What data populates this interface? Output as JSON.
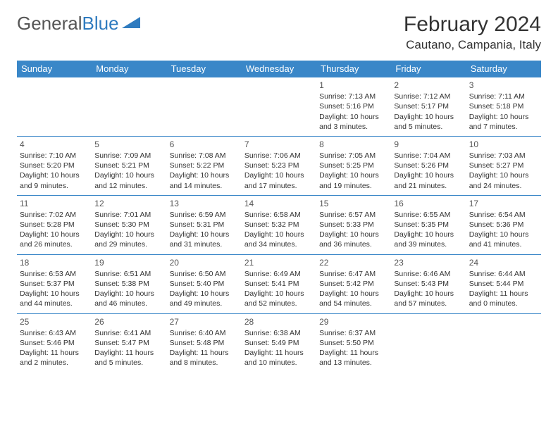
{
  "logo": {
    "text1": "General",
    "text2": "Blue"
  },
  "title": "February 2024",
  "location": "Cautano, Campania, Italy",
  "colors": {
    "header_bg": "#3a87c8",
    "header_fg": "#ffffff",
    "row_border": "#3a87c8",
    "text": "#333333",
    "logo_blue": "#2f7bbf"
  },
  "weekdays": [
    "Sunday",
    "Monday",
    "Tuesday",
    "Wednesday",
    "Thursday",
    "Friday",
    "Saturday"
  ],
  "weeks": [
    [
      null,
      null,
      null,
      null,
      {
        "n": "1",
        "sr": "7:13 AM",
        "ss": "5:16 PM",
        "dl": "10 hours and 3 minutes."
      },
      {
        "n": "2",
        "sr": "7:12 AM",
        "ss": "5:17 PM",
        "dl": "10 hours and 5 minutes."
      },
      {
        "n": "3",
        "sr": "7:11 AM",
        "ss": "5:18 PM",
        "dl": "10 hours and 7 minutes."
      }
    ],
    [
      {
        "n": "4",
        "sr": "7:10 AM",
        "ss": "5:20 PM",
        "dl": "10 hours and 9 minutes."
      },
      {
        "n": "5",
        "sr": "7:09 AM",
        "ss": "5:21 PM",
        "dl": "10 hours and 12 minutes."
      },
      {
        "n": "6",
        "sr": "7:08 AM",
        "ss": "5:22 PM",
        "dl": "10 hours and 14 minutes."
      },
      {
        "n": "7",
        "sr": "7:06 AM",
        "ss": "5:23 PM",
        "dl": "10 hours and 17 minutes."
      },
      {
        "n": "8",
        "sr": "7:05 AM",
        "ss": "5:25 PM",
        "dl": "10 hours and 19 minutes."
      },
      {
        "n": "9",
        "sr": "7:04 AM",
        "ss": "5:26 PM",
        "dl": "10 hours and 21 minutes."
      },
      {
        "n": "10",
        "sr": "7:03 AM",
        "ss": "5:27 PM",
        "dl": "10 hours and 24 minutes."
      }
    ],
    [
      {
        "n": "11",
        "sr": "7:02 AM",
        "ss": "5:28 PM",
        "dl": "10 hours and 26 minutes."
      },
      {
        "n": "12",
        "sr": "7:01 AM",
        "ss": "5:30 PM",
        "dl": "10 hours and 29 minutes."
      },
      {
        "n": "13",
        "sr": "6:59 AM",
        "ss": "5:31 PM",
        "dl": "10 hours and 31 minutes."
      },
      {
        "n": "14",
        "sr": "6:58 AM",
        "ss": "5:32 PM",
        "dl": "10 hours and 34 minutes."
      },
      {
        "n": "15",
        "sr": "6:57 AM",
        "ss": "5:33 PM",
        "dl": "10 hours and 36 minutes."
      },
      {
        "n": "16",
        "sr": "6:55 AM",
        "ss": "5:35 PM",
        "dl": "10 hours and 39 minutes."
      },
      {
        "n": "17",
        "sr": "6:54 AM",
        "ss": "5:36 PM",
        "dl": "10 hours and 41 minutes."
      }
    ],
    [
      {
        "n": "18",
        "sr": "6:53 AM",
        "ss": "5:37 PM",
        "dl": "10 hours and 44 minutes."
      },
      {
        "n": "19",
        "sr": "6:51 AM",
        "ss": "5:38 PM",
        "dl": "10 hours and 46 minutes."
      },
      {
        "n": "20",
        "sr": "6:50 AM",
        "ss": "5:40 PM",
        "dl": "10 hours and 49 minutes."
      },
      {
        "n": "21",
        "sr": "6:49 AM",
        "ss": "5:41 PM",
        "dl": "10 hours and 52 minutes."
      },
      {
        "n": "22",
        "sr": "6:47 AM",
        "ss": "5:42 PM",
        "dl": "10 hours and 54 minutes."
      },
      {
        "n": "23",
        "sr": "6:46 AM",
        "ss": "5:43 PM",
        "dl": "10 hours and 57 minutes."
      },
      {
        "n": "24",
        "sr": "6:44 AM",
        "ss": "5:44 PM",
        "dl": "11 hours and 0 minutes."
      }
    ],
    [
      {
        "n": "25",
        "sr": "6:43 AM",
        "ss": "5:46 PM",
        "dl": "11 hours and 2 minutes."
      },
      {
        "n": "26",
        "sr": "6:41 AM",
        "ss": "5:47 PM",
        "dl": "11 hours and 5 minutes."
      },
      {
        "n": "27",
        "sr": "6:40 AM",
        "ss": "5:48 PM",
        "dl": "11 hours and 8 minutes."
      },
      {
        "n": "28",
        "sr": "6:38 AM",
        "ss": "5:49 PM",
        "dl": "11 hours and 10 minutes."
      },
      {
        "n": "29",
        "sr": "6:37 AM",
        "ss": "5:50 PM",
        "dl": "11 hours and 13 minutes."
      },
      null,
      null
    ]
  ],
  "labels": {
    "sunrise": "Sunrise:",
    "sunset": "Sunset:",
    "daylight": "Daylight:"
  }
}
